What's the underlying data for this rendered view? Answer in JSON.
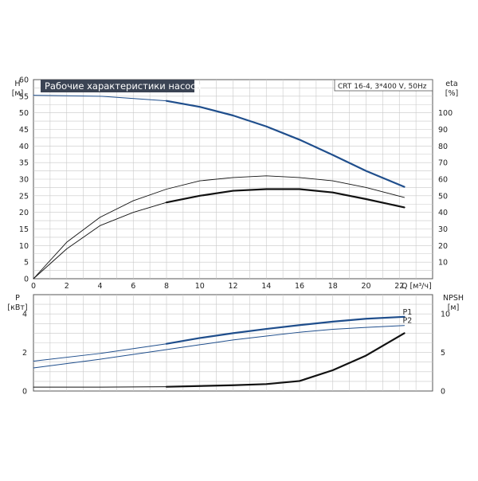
{
  "chart_data": [
    {
      "type": "line",
      "panel": "top",
      "title": "Рабочие характеристики насоса",
      "model_label": "CRT 16-4, 3*400 V, 50Hz",
      "left_axis": {
        "label": "H",
        "unit": "[м]",
        "range": [
          0,
          60
        ],
        "ticks": [
          0,
          5,
          10,
          15,
          20,
          25,
          30,
          35,
          40,
          45,
          50,
          55,
          60
        ]
      },
      "right_axis": {
        "label": "eta",
        "unit": "[%]",
        "range": [
          0,
          120
        ],
        "ticks": [
          0,
          10,
          20,
          30,
          40,
          50,
          60,
          70,
          80,
          90,
          100
        ]
      },
      "x_axis": {
        "label": "Q [м³/ч]",
        "range": [
          0,
          24
        ],
        "ticks": [
          0,
          2,
          4,
          6,
          8,
          10,
          12,
          14,
          16,
          18,
          20,
          22
        ]
      },
      "grid": true,
      "series": [
        {
          "name": "",
          "axis": "left",
          "color": "#1f4e8c",
          "width": 1.0,
          "x": [
            0,
            4,
            8
          ],
          "y": [
            55.3,
            55.0,
            53.6
          ]
        },
        {
          "name": "",
          "axis": "left",
          "color": "#1f4e8c",
          "width": 2.2,
          "x": [
            8,
            10,
            12,
            14,
            16,
            18,
            20,
            22.3
          ],
          "y": [
            53.6,
            51.8,
            49.2,
            45.9,
            41.9,
            37.3,
            32.5,
            27.7
          ]
        },
        {
          "name": "",
          "axis": "right",
          "color": "#111111",
          "width": 0.9,
          "x": [
            0,
            2,
            4,
            6,
            8,
            10,
            12,
            14,
            16,
            18,
            20,
            22.3
          ],
          "y": [
            0,
            22,
            37,
            47,
            54,
            59,
            61,
            62,
            61,
            59,
            55,
            49
          ]
        },
        {
          "name": "",
          "axis": "right",
          "color": "#111111",
          "width": 0.9,
          "x": [
            0,
            2,
            4,
            6,
            8
          ],
          "y": [
            0,
            18,
            32,
            40,
            46
          ]
        },
        {
          "name": "",
          "axis": "right",
          "color": "#111111",
          "width": 2.2,
          "x": [
            8,
            10,
            12,
            14,
            16,
            18,
            20,
            22.3
          ],
          "y": [
            46,
            50,
            53,
            54,
            54,
            52,
            48,
            43
          ]
        }
      ]
    },
    {
      "type": "line",
      "panel": "bottom",
      "left_axis": {
        "label": "P",
        "unit": "[кВт]",
        "range": [
          0,
          5
        ],
        "ticks": [
          0,
          2,
          4
        ]
      },
      "right_axis": {
        "label": "NPSH",
        "unit": "[м]",
        "range": [
          0,
          12.5
        ],
        "ticks": [
          0,
          5,
          10
        ]
      },
      "x_axis": {
        "range": [
          0,
          24
        ]
      },
      "grid": true,
      "series": [
        {
          "name": "",
          "axis": "left",
          "color": "#1f4e8c",
          "width": 1.0,
          "x": [
            0,
            4,
            8
          ],
          "y": [
            1.55,
            1.95,
            2.45
          ]
        },
        {
          "name": "P1",
          "axis": "left",
          "color": "#1f4e8c",
          "width": 2.2,
          "x": [
            8,
            10,
            12,
            14,
            16,
            18,
            20,
            22.3
          ],
          "y": [
            2.45,
            2.75,
            3.0,
            3.22,
            3.42,
            3.6,
            3.75,
            3.85
          ]
        },
        {
          "name": "P2",
          "axis": "left",
          "color": "#1f4e8c",
          "width": 1.0,
          "x": [
            0,
            4,
            8,
            10,
            12,
            14,
            16,
            18,
            20,
            22.3
          ],
          "y": [
            1.2,
            1.65,
            2.15,
            2.4,
            2.65,
            2.85,
            3.05,
            3.2,
            3.3,
            3.4
          ]
        },
        {
          "name": "",
          "axis": "right",
          "color": "#111111",
          "width": 1.0,
          "x": [
            0,
            4,
            8
          ],
          "y": [
            0.5,
            0.5,
            0.55
          ]
        },
        {
          "name": "",
          "axis": "right",
          "color": "#111111",
          "width": 2.2,
          "x": [
            8,
            12,
            14,
            16,
            18,
            20,
            22.3
          ],
          "y": [
            0.55,
            0.75,
            0.9,
            1.3,
            2.7,
            4.6,
            7.5
          ]
        }
      ]
    }
  ]
}
